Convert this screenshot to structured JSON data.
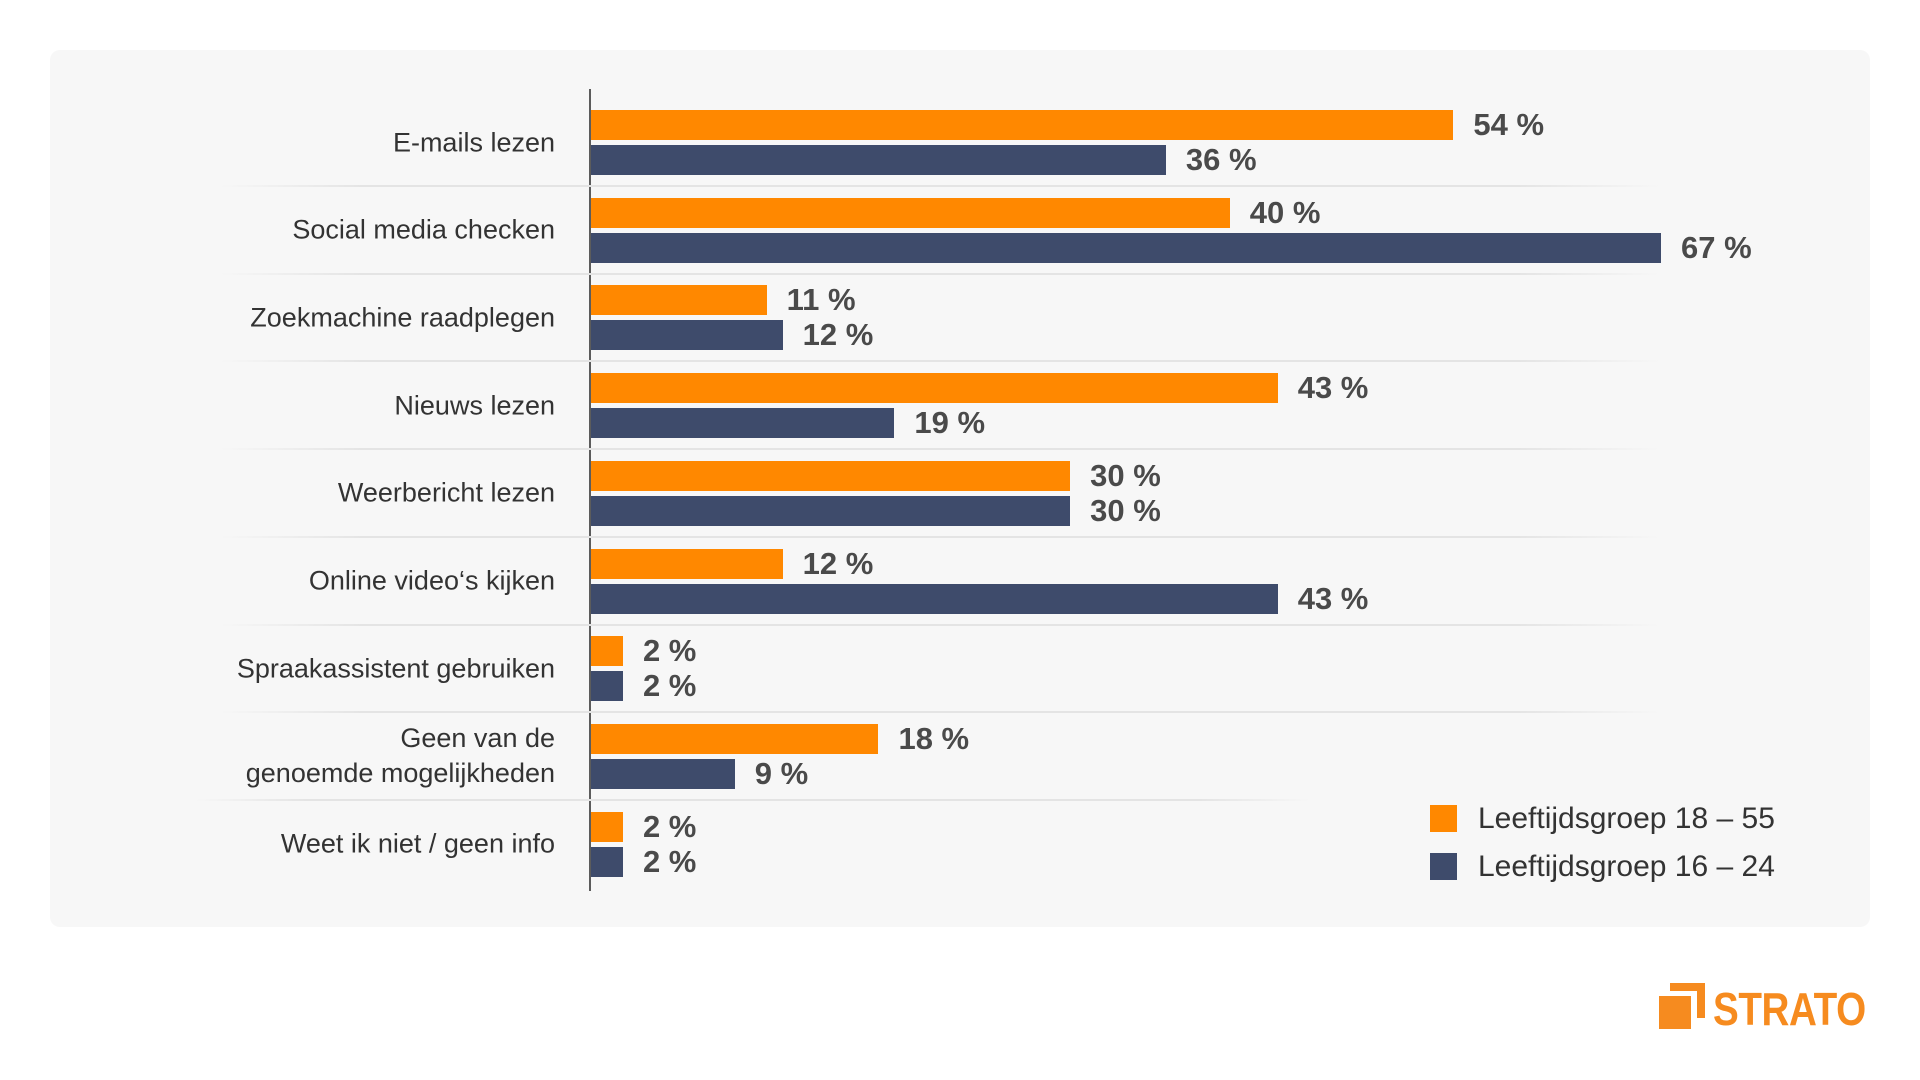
{
  "chart_data": {
    "type": "bar",
    "orientation": "horizontal",
    "title": "",
    "xlabel": "",
    "ylabel": "",
    "grid": false,
    "legend": "bottom-right",
    "value_suffix": " %",
    "categories": [
      "E-mails lezen",
      "Social media checken",
      "Zoekmachine raadplegen",
      "Nieuws lezen",
      "Weerbericht lezen",
      "Online video‘s kijken",
      "Spraakassistent gebruiken",
      "Geen van de\ngenoemde mogelijkheden",
      "Weet ik niet / geen info"
    ],
    "series": [
      {
        "name": "Leeftijdsgroep 18 – 55",
        "color": "#ff8800",
        "values": [
          54,
          40,
          11,
          43,
          30,
          12,
          2,
          18,
          2
        ]
      },
      {
        "name": "Leeftijdsgroep 16 – 24",
        "color": "#3e4b6b",
        "values": [
          36,
          67,
          12,
          19,
          30,
          43,
          2,
          9,
          2
        ]
      }
    ]
  },
  "brand": {
    "name": "STRATO",
    "color": "#f68b1f"
  }
}
